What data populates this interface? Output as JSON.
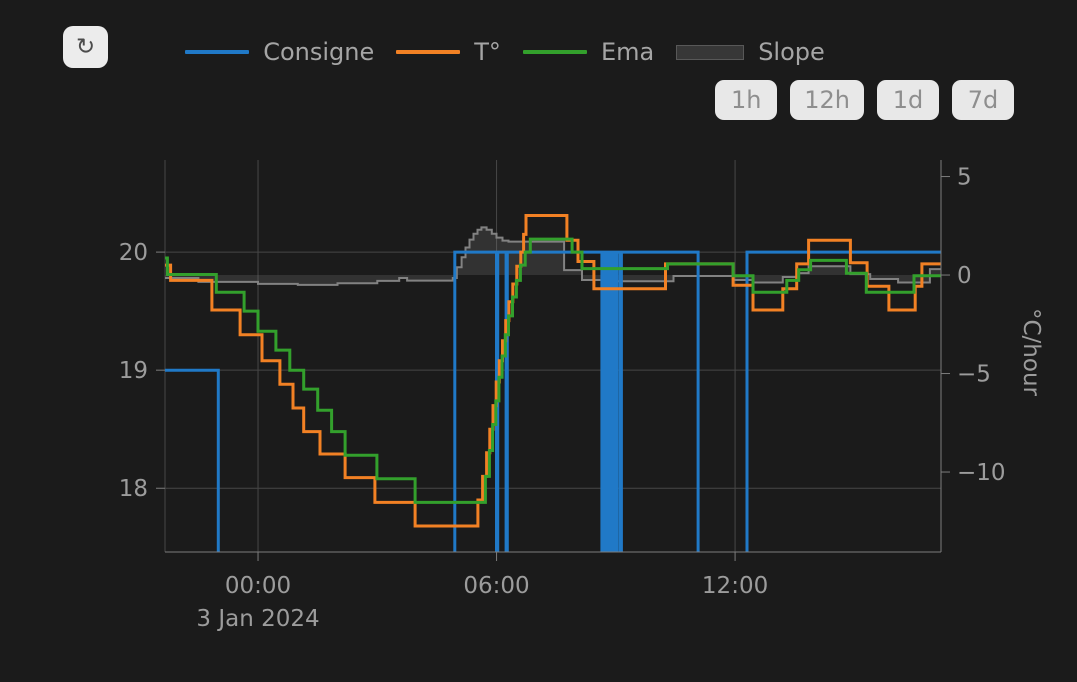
{
  "toolbar": {
    "refresh_icon": "↻",
    "ranges": [
      "1h",
      "12h",
      "1d",
      "7d"
    ]
  },
  "chart_data": {
    "type": "line",
    "x_axis": {
      "range_hours": [
        -2.34,
        17.18
      ],
      "tick_hours": [
        0,
        6,
        12
      ],
      "tick_labels": [
        "00:00",
        "06:00",
        "12:00"
      ],
      "date_label": "3 Jan 2024"
    },
    "y_left": {
      "range": [
        17.46,
        20.78
      ],
      "tick_values": [
        20,
        19,
        18
      ],
      "tick_labels": [
        "20",
        "19",
        "18"
      ]
    },
    "y_right": {
      "label": "°C/hour",
      "range": [
        -14.06,
        5.84
      ],
      "tick_values": [
        5,
        0,
        -5,
        -10
      ],
      "tick_labels": [
        "5",
        "0",
        "−5",
        "−10"
      ]
    },
    "grid": true,
    "legend_position": "top",
    "series": [
      {
        "name": "Consigne",
        "type": "step-line",
        "axis": "left",
        "color": "#2079c7",
        "points": [
          [
            -2.34,
            19
          ],
          [
            -1.0,
            17
          ],
          [
            4.95,
            20
          ],
          [
            6.0,
            17
          ],
          [
            6.03,
            20
          ],
          [
            6.24,
            17
          ],
          [
            6.27,
            20
          ],
          [
            8.65,
            17
          ],
          [
            8.68,
            20
          ],
          [
            8.75,
            17
          ],
          [
            8.78,
            20
          ],
          [
            8.83,
            17
          ],
          [
            8.86,
            20
          ],
          [
            8.91,
            17
          ],
          [
            8.94,
            20
          ],
          [
            9.0,
            17
          ],
          [
            9.03,
            20
          ],
          [
            9.11,
            17
          ],
          [
            9.14,
            20
          ],
          [
            11.07,
            17
          ],
          [
            12.3,
            20
          ]
        ]
      },
      {
        "name": "T°",
        "type": "step-line",
        "axis": "left",
        "color": "#f28124",
        "points": [
          [
            -2.34,
            19.89
          ],
          [
            -2.2,
            19.76
          ],
          [
            -1.16,
            19.51
          ],
          [
            -0.45,
            19.3
          ],
          [
            0.1,
            19.08
          ],
          [
            0.55,
            18.88
          ],
          [
            0.88,
            18.68
          ],
          [
            1.15,
            18.48
          ],
          [
            1.56,
            18.29
          ],
          [
            2.19,
            18.09
          ],
          [
            2.94,
            17.88
          ],
          [
            3.95,
            17.68
          ],
          [
            5.53,
            17.9
          ],
          [
            5.65,
            18.1
          ],
          [
            5.75,
            18.3
          ],
          [
            5.83,
            18.5
          ],
          [
            5.91,
            18.7
          ],
          [
            5.99,
            18.9
          ],
          [
            6.07,
            19.08
          ],
          [
            6.15,
            19.25
          ],
          [
            6.23,
            19.42
          ],
          [
            6.31,
            19.58
          ],
          [
            6.41,
            19.73
          ],
          [
            6.51,
            19.88
          ],
          [
            6.61,
            20.0
          ],
          [
            6.68,
            20.15
          ],
          [
            6.74,
            20.31
          ],
          [
            7.77,
            20.1
          ],
          [
            8.05,
            19.92
          ],
          [
            8.45,
            19.69
          ],
          [
            10.25,
            19.9
          ],
          [
            11.95,
            19.72
          ],
          [
            12.45,
            19.51
          ],
          [
            13.2,
            19.69
          ],
          [
            13.55,
            19.9
          ],
          [
            13.85,
            20.1
          ],
          [
            14.9,
            19.91
          ],
          [
            15.32,
            19.71
          ],
          [
            15.87,
            19.51
          ],
          [
            16.53,
            19.71
          ],
          [
            16.7,
            19.9
          ]
        ]
      },
      {
        "name": "Ema",
        "type": "step-line",
        "axis": "left",
        "color": "#33a02c",
        "points": [
          [
            -2.34,
            19.95
          ],
          [
            -2.28,
            19.81
          ],
          [
            -1.05,
            19.66
          ],
          [
            -0.35,
            19.5
          ],
          [
            0.0,
            19.33
          ],
          [
            0.45,
            19.17
          ],
          [
            0.8,
            19.0
          ],
          [
            1.15,
            18.84
          ],
          [
            1.5,
            18.66
          ],
          [
            1.85,
            18.48
          ],
          [
            2.19,
            18.28
          ],
          [
            2.99,
            18.08
          ],
          [
            3.95,
            17.88
          ],
          [
            5.72,
            18.1
          ],
          [
            5.82,
            18.32
          ],
          [
            5.9,
            18.54
          ],
          [
            5.98,
            18.74
          ],
          [
            6.06,
            18.94
          ],
          [
            6.14,
            19.12
          ],
          [
            6.22,
            19.3
          ],
          [
            6.3,
            19.46
          ],
          [
            6.4,
            19.62
          ],
          [
            6.5,
            19.76
          ],
          [
            6.6,
            19.89
          ],
          [
            6.72,
            20.0
          ],
          [
            6.85,
            20.11
          ],
          [
            7.9,
            20.0
          ],
          [
            8.15,
            19.86
          ],
          [
            10.3,
            19.9
          ],
          [
            11.95,
            19.8
          ],
          [
            12.45,
            19.66
          ],
          [
            13.3,
            19.76
          ],
          [
            13.6,
            19.85
          ],
          [
            13.9,
            19.93
          ],
          [
            14.8,
            19.82
          ],
          [
            15.3,
            19.66
          ],
          [
            16.5,
            19.8
          ]
        ]
      },
      {
        "name": "Slope",
        "type": "step-area",
        "axis": "right",
        "baseline": 0,
        "color": "#828282",
        "fill": "rgba(130,130,130,0.22)",
        "legend_fill": "#373737",
        "points": [
          [
            -2.34,
            -0.15
          ],
          [
            -1.5,
            -0.35
          ],
          [
            0.0,
            -0.45
          ],
          [
            1.0,
            -0.5
          ],
          [
            2.0,
            -0.42
          ],
          [
            3.0,
            -0.3
          ],
          [
            3.55,
            -0.15
          ],
          [
            3.75,
            -0.28
          ],
          [
            4.9,
            -0.15
          ],
          [
            5.0,
            0.4
          ],
          [
            5.12,
            0.9
          ],
          [
            5.22,
            1.4
          ],
          [
            5.32,
            1.8
          ],
          [
            5.42,
            2.1
          ],
          [
            5.52,
            2.3
          ],
          [
            5.62,
            2.42
          ],
          [
            5.75,
            2.3
          ],
          [
            5.88,
            2.1
          ],
          [
            6.0,
            1.9
          ],
          [
            6.15,
            1.75
          ],
          [
            6.3,
            1.7
          ],
          [
            7.7,
            0.25
          ],
          [
            8.15,
            -0.25
          ],
          [
            9.0,
            -0.32
          ],
          [
            10.45,
            -0.05
          ],
          [
            11.95,
            -0.25
          ],
          [
            12.45,
            -0.38
          ],
          [
            13.2,
            -0.1
          ],
          [
            13.55,
            0.1
          ],
          [
            13.85,
            0.45
          ],
          [
            14.9,
            0.05
          ],
          [
            15.4,
            -0.2
          ],
          [
            16.1,
            -0.38
          ],
          [
            16.9,
            0.3
          ]
        ]
      }
    ]
  }
}
